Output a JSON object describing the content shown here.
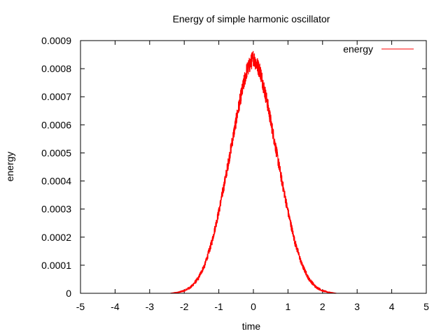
{
  "chart_data": {
    "type": "line",
    "title": "Energy of simple harmonic oscillator",
    "xlabel": "time",
    "ylabel": "energy",
    "xlim": [
      -5,
      5
    ],
    "ylim": [
      0,
      0.0009
    ],
    "x_ticks": [
      -5,
      -4,
      -3,
      -2,
      -1,
      0,
      1,
      2,
      3,
      4,
      5
    ],
    "x_tick_labels": [
      "-5",
      "-4",
      "-3",
      "-2",
      "-1",
      "0",
      "1",
      "2",
      "3",
      "4",
      "5"
    ],
    "y_ticks": [
      0,
      0.0001,
      0.0002,
      0.0003,
      0.0004,
      0.0005,
      0.0006,
      0.0007,
      0.0008,
      0.0009
    ],
    "y_tick_labels": [
      "0",
      "0.0001",
      "0.0002",
      "0.0003",
      "0.0004",
      "0.0005",
      "0.0006",
      "0.0007",
      "0.0008",
      "0.0009"
    ],
    "grid": false,
    "legend_position": "top-right",
    "series": [
      {
        "name": "energy",
        "color": "#ff0000",
        "x": [
          -2.4,
          -2.2,
          -2.0,
          -1.8,
          -1.6,
          -1.4,
          -1.2,
          -1.0,
          -0.8,
          -0.6,
          -0.4,
          -0.2,
          0.0,
          0.2,
          0.4,
          0.6,
          0.8,
          1.0,
          1.2,
          1.4,
          1.6,
          1.8,
          2.0,
          2.2,
          2.4
        ],
        "y": [
          0.0,
          3e-06,
          9e-06,
          2.3e-05,
          5.2e-05,
          0.000103,
          0.000183,
          0.000291,
          0.000415,
          0.000549,
          0.00068,
          0.00079,
          0.00084,
          0.00079,
          0.00068,
          0.000549,
          0.000415,
          0.000291,
          0.000183,
          0.000103,
          5.2e-05,
          2.3e-05,
          9e-06,
          3e-06,
          0.0
        ],
        "noise_amplitude": 3e-05
      }
    ]
  }
}
